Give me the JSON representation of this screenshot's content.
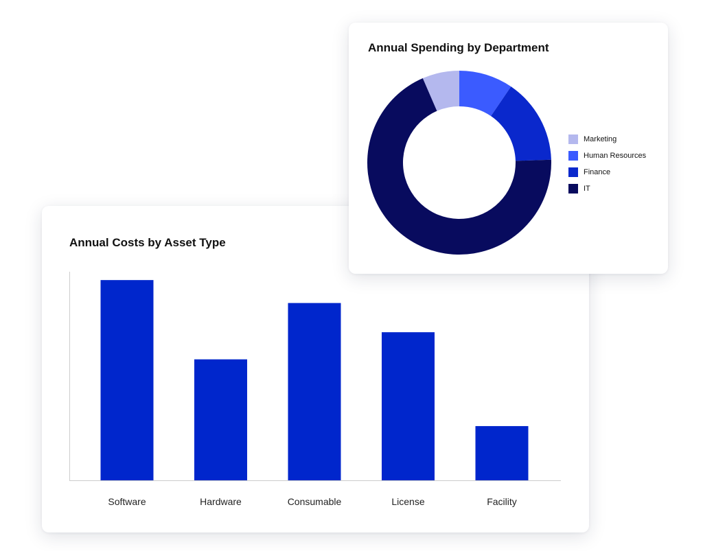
{
  "chart_data": [
    {
      "type": "bar",
      "title": "Annual Costs by Asset Type",
      "categories": [
        "Software",
        "Hardware",
        "Consumable",
        "License",
        "Facility"
      ],
      "values": [
        96,
        58,
        85,
        71,
        26
      ],
      "ylim": [
        0,
        100
      ],
      "xlabel": "",
      "ylabel": "",
      "grid": false,
      "bar_color": "#0026CC",
      "axis_color": "#CCCCCC"
    },
    {
      "type": "pie",
      "style": "donut",
      "title": "Annual Spending by Department",
      "labels": [
        "Marketing",
        "Human Resources",
        "Finance",
        "IT"
      ],
      "values": [
        6.5,
        9.5,
        15,
        69
      ],
      "colors": [
        "#B4B8EE",
        "#3B5BFF",
        "#0A28CC",
        "#080B5E"
      ],
      "legend_position": "right"
    }
  ]
}
